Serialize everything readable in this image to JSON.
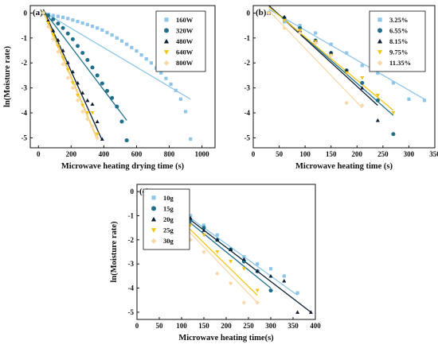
{
  "chart_data": [
    {
      "type": "scatter",
      "panel": "(a)",
      "xlabel": "Microwave heating drying time (s)",
      "ylabel": "ln(Moisture rate)",
      "xlim": [
        -50,
        1080
      ],
      "ylim": [
        -5.4,
        0.3
      ],
      "xticks": [
        0,
        200,
        400,
        600,
        800,
        1000
      ],
      "yticks": [
        0,
        -1,
        -2,
        -3,
        -4,
        -5
      ],
      "legend_position": "top-right",
      "series": [
        {
          "name": "160W",
          "color": "#8ec5e8",
          "marker": "square",
          "x": [
            30,
            60,
            90,
            120,
            150,
            180,
            210,
            240,
            270,
            300,
            330,
            360,
            390,
            420,
            450,
            480,
            510,
            540,
            570,
            600,
            630,
            660,
            690,
            720,
            750,
            780,
            810,
            840,
            870,
            900,
            930
          ],
          "y": [
            0,
            -0.05,
            -0.1,
            -0.13,
            -0.17,
            -0.22,
            -0.28,
            -0.34,
            -0.4,
            -0.46,
            -0.53,
            -0.6,
            -0.68,
            -0.78,
            -0.88,
            -1.0,
            -1.12,
            -1.25,
            -1.38,
            -1.52,
            -1.68,
            -1.84,
            -2.0,
            -2.2,
            -2.4,
            -2.62,
            -2.85,
            -3.1,
            -3.45,
            -3.95,
            -5.05
          ],
          "fit": {
            "x": [
              30,
              930
            ],
            "y": [
              0.05,
              -3.45
            ]
          }
        },
        {
          "name": "320W",
          "color": "#1f6f8b",
          "marker": "circle",
          "x": [
            30,
            60,
            90,
            120,
            150,
            180,
            210,
            240,
            270,
            300,
            330,
            360,
            390,
            420,
            450,
            480,
            510,
            540
          ],
          "y": [
            0,
            -0.1,
            -0.25,
            -0.42,
            -0.6,
            -0.82,
            -1.05,
            -1.32,
            -1.6,
            -1.88,
            -2.18,
            -2.5,
            -2.82,
            -3.12,
            -3.4,
            -3.75,
            -4.35,
            -5.1
          ],
          "fit": {
            "x": [
              30,
              540
            ],
            "y": [
              0.12,
              -4.3
            ]
          }
        },
        {
          "name": "480W",
          "color": "#0d1f33",
          "marker": "triangle-up",
          "x": [
            30,
            60,
            90,
            120,
            150,
            180,
            210,
            240,
            270,
            300,
            330,
            360,
            390
          ],
          "y": [
            0,
            -0.3,
            -0.7,
            -1.08,
            -1.5,
            -1.98,
            -2.35,
            -2.8,
            -3.2,
            -3.5,
            -3.65,
            -4.35,
            -5.05
          ],
          "fit": {
            "x": [
              30,
              390
            ],
            "y": [
              0.15,
              -5.1
            ]
          }
        },
        {
          "name": "640W",
          "color": "#f2c418",
          "marker": "triangle-down",
          "x": [
            30,
            60,
            90,
            120,
            150,
            180,
            210,
            240,
            270,
            300,
            330,
            360
          ],
          "y": [
            0,
            -0.4,
            -0.88,
            -1.32,
            -1.8,
            -2.28,
            -2.8,
            -3.3,
            -3.7,
            -4.0,
            -4.0,
            -4.85
          ],
          "fit": {
            "x": [
              30,
              360
            ],
            "y": [
              0.1,
              -5.05
            ]
          }
        },
        {
          "name": "800W",
          "color": "#f8d8a8",
          "marker": "diamond",
          "x": [
            30,
            60,
            90,
            120,
            150,
            180,
            210,
            240,
            270,
            300,
            330,
            360
          ],
          "y": [
            0,
            -0.55,
            -1.05,
            -1.55,
            -2.05,
            -2.6,
            -3.0,
            -3.5,
            -3.95,
            -4.25,
            -4.55,
            -5.0
          ],
          "fit": {
            "x": [
              30,
              360
            ],
            "y": [
              0.0,
              -5.1
            ]
          }
        }
      ]
    },
    {
      "type": "scatter",
      "panel": "(b)",
      "xlabel": "Microwave heating time (s)",
      "ylabel": "",
      "xlim": [
        0,
        350
      ],
      "ylim": [
        -5.4,
        0.3
      ],
      "xticks": [
        0,
        50,
        100,
        150,
        200,
        250,
        300,
        350
      ],
      "yticks": [
        0,
        -1,
        -2,
        -3,
        -4,
        -5
      ],
      "legend_position": "top-right",
      "series": [
        {
          "name": "3.25%",
          "color": "#8ec5e8",
          "marker": "square",
          "x": [
            30,
            60,
            90,
            120,
            150,
            180,
            210,
            240,
            270,
            300,
            330
          ],
          "y": [
            0,
            -0.35,
            -0.5,
            -0.8,
            -1.25,
            -1.6,
            -2.1,
            -2.4,
            -2.8,
            -3.45,
            -3.5
          ],
          "fit": {
            "x": [
              30,
              330
            ],
            "y": [
              0.15,
              -3.45
            ]
          }
        },
        {
          "name": "6.55%",
          "color": "#1f6f8b",
          "marker": "circle",
          "x": [
            30,
            60,
            90,
            120,
            150,
            180,
            210,
            240,
            270
          ],
          "y": [
            0,
            -0.2,
            -0.6,
            -1.1,
            -1.6,
            -2.3,
            -2.8,
            -3.5,
            -4.85
          ],
          "fit": {
            "x": [
              30,
              270
            ],
            "y": [
              0.3,
              -4.1
            ]
          }
        },
        {
          "name": "8.15%",
          "color": "#0d1f33",
          "marker": "triangle-up",
          "x": [
            30,
            60,
            90,
            120,
            150,
            180,
            210,
            240
          ],
          "y": [
            0,
            -0.15,
            -0.7,
            -1.1,
            -1.6,
            -2.3,
            -3.0,
            -4.3
          ],
          "fit": {
            "x": [
              30,
              240
            ],
            "y": [
              0.3,
              -3.7
            ]
          }
        },
        {
          "name": "9.75%",
          "color": "#f2c418",
          "marker": "triangle-down",
          "x": [
            30,
            60,
            90,
            120,
            150,
            180,
            210,
            240,
            270
          ],
          "y": [
            0,
            -0.3,
            -0.7,
            -1.15,
            -1.7,
            -2.4,
            -2.6,
            -3.3,
            -4.0
          ],
          "fit": {
            "x": [
              30,
              270
            ],
            "y": [
              0.25,
              -3.9
            ]
          }
        },
        {
          "name": "11.35%",
          "color": "#f8d8a8",
          "marker": "diamond",
          "x": [
            30,
            60,
            90,
            120,
            150,
            180,
            210
          ],
          "y": [
            0,
            -0.6,
            -0.8,
            -1.2,
            -1.7,
            -3.6,
            -3.7
          ],
          "fit": {
            "x": [
              30,
              210
            ],
            "y": [
              0.1,
              -3.8
            ]
          }
        }
      ]
    },
    {
      "type": "scatter",
      "panel": "(c)",
      "xlabel": "Microwave heating time(s)",
      "ylabel": "ln(Moisture rate)",
      "xlim": [
        0,
        400
      ],
      "ylim": [
        -5.3,
        0.3
      ],
      "xticks": [
        0,
        50,
        100,
        150,
        200,
        250,
        300,
        350,
        400
      ],
      "yticks": [
        0,
        -1,
        -2,
        -3,
        -4,
        -5
      ],
      "legend_position": "top-left",
      "series": [
        {
          "name": "10g",
          "color": "#8ec5e8",
          "marker": "square",
          "x": [
            30,
            60,
            90,
            120,
            150,
            180,
            210,
            240,
            270,
            300,
            330,
            360
          ],
          "y": [
            0,
            -0.4,
            -0.7,
            -1.0,
            -1.4,
            -1.8,
            -2.4,
            -2.7,
            -3.0,
            -3.2,
            -3.5,
            -4.2
          ],
          "fit": {
            "x": [
              30,
              360
            ],
            "y": [
              0.1,
              -4.3
            ]
          }
        },
        {
          "name": "15g",
          "color": "#1f6f8b",
          "marker": "circle",
          "x": [
            30,
            60,
            90,
            120,
            150,
            180,
            210,
            240,
            270,
            300
          ],
          "y": [
            0,
            -0.4,
            -0.8,
            -1.2,
            -1.5,
            -2.0,
            -2.4,
            -2.9,
            -3.3,
            -4.1
          ],
          "fit": {
            "x": [
              30,
              300
            ],
            "y": [
              0.05,
              -4.0
            ]
          }
        },
        {
          "name": "20g",
          "color": "#0d1f33",
          "marker": "triangle-up",
          "x": [
            30,
            60,
            90,
            120,
            150,
            180,
            210,
            240,
            270,
            300,
            330,
            360,
            390
          ],
          "y": [
            0,
            -0.3,
            -0.8,
            -1.1,
            -1.6,
            -2.0,
            -2.4,
            -2.8,
            -3.3,
            -3.5,
            -3.7,
            -5.0,
            -5.0
          ],
          "fit": {
            "x": [
              30,
              390
            ],
            "y": [
              0.1,
              -5.0
            ]
          }
        },
        {
          "name": "25g",
          "color": "#f2c418",
          "marker": "triangle-down",
          "x": [
            30,
            60,
            90,
            120,
            150,
            180,
            210,
            240,
            270
          ],
          "y": [
            0,
            -0.5,
            -0.9,
            -1.4,
            -1.8,
            -2.5,
            -2.9,
            -3.2,
            -4.1
          ],
          "fit": {
            "x": [
              30,
              270
            ],
            "y": [
              0.05,
              -4.3
            ]
          }
        },
        {
          "name": "30g",
          "color": "#f8d8a8",
          "marker": "diamond",
          "x": [
            30,
            60,
            90,
            120,
            150,
            180,
            210,
            240,
            270
          ],
          "y": [
            0,
            -0.9,
            -1.1,
            -2.0,
            -2.5,
            -3.4,
            -3.8,
            -4.6,
            -4.6
          ],
          "fit": {
            "x": [
              30,
              270
            ],
            "y": [
              0.0,
              -4.6
            ]
          }
        }
      ]
    }
  ]
}
